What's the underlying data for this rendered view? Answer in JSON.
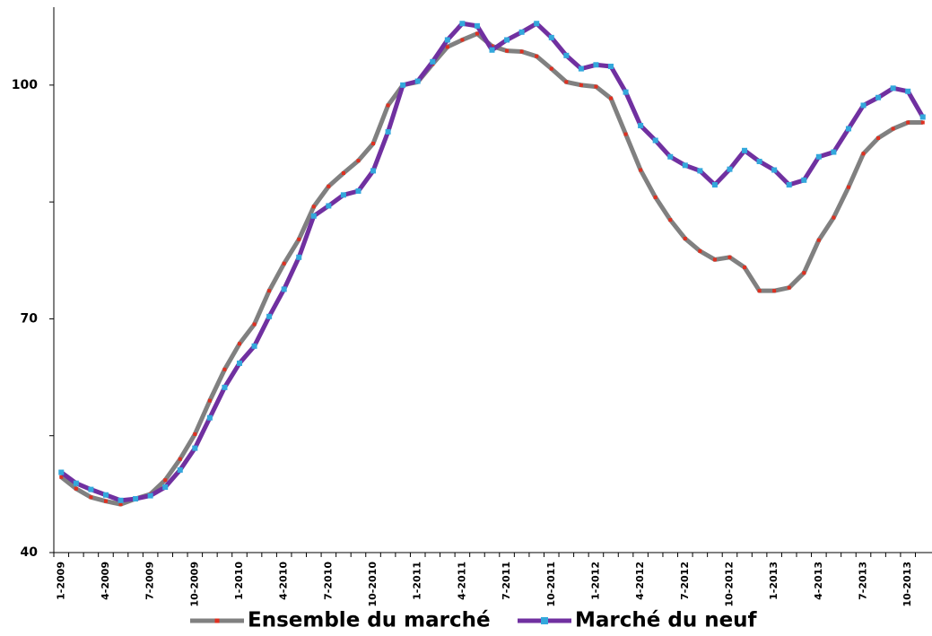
{
  "chart_data": {
    "type": "line",
    "categories": [
      "1-2009",
      null,
      null,
      "4-2009",
      null,
      null,
      "7-2009",
      null,
      null,
      "10-2009",
      null,
      null,
      "1-2010",
      null,
      null,
      "4-2010",
      null,
      null,
      "7-2010",
      null,
      null,
      "10-2010",
      null,
      null,
      "1-2011",
      null,
      null,
      "4-2011",
      null,
      null,
      "7-2011",
      null,
      null,
      "10-2011",
      null,
      null,
      "1-2012",
      null,
      null,
      "4-2012",
      null,
      null,
      "7-2012",
      null,
      null,
      "10-2012",
      null,
      null,
      "1-2013",
      null,
      null,
      "4-2013",
      null,
      null,
      "7-2013",
      null,
      null,
      "10-2013",
      null
    ],
    "series": [
      {
        "name": "Ensemble du marché",
        "color": "#808080",
        "marker_color": "#e03020",
        "values": [
          49.7,
          48.2,
          47.1,
          46.6,
          46.2,
          46.9,
          47.5,
          49.3,
          52.0,
          55.2,
          59.5,
          63.5,
          66.8,
          69.3,
          73.6,
          77.1,
          80.2,
          84.4,
          87.0,
          88.7,
          90.3,
          92.5,
          97.4,
          100.0,
          100.4,
          102.7,
          104.9,
          105.8,
          106.6,
          105.0,
          104.4,
          104.3,
          103.7,
          102.1,
          100.4,
          100.0,
          99.8,
          98.3,
          93.7,
          89.1,
          85.6,
          82.7,
          80.3,
          78.7,
          77.6,
          77.9,
          76.6,
          73.6,
          73.6,
          74.0,
          75.9,
          80.1,
          83.0,
          86.9,
          91.2,
          93.2,
          94.4,
          95.2,
          95.2
        ]
      },
      {
        "name": "Marché du neuf",
        "color": "#7030a0",
        "marker_color": "#33a8dc",
        "values": [
          50.3,
          48.9,
          48.1,
          47.4,
          46.7,
          46.9,
          47.3,
          48.4,
          50.6,
          53.4,
          57.3,
          61.2,
          64.3,
          66.5,
          70.3,
          73.8,
          77.9,
          83.2,
          84.5,
          85.9,
          86.4,
          89.0,
          94.0,
          100.0,
          100.5,
          103.0,
          105.8,
          107.9,
          107.6,
          104.5,
          105.8,
          106.8,
          107.9,
          106.1,
          103.8,
          102.1,
          102.6,
          102.4,
          99.1,
          94.8,
          92.9,
          90.8,
          89.7,
          89.0,
          87.2,
          89.2,
          91.6,
          90.2,
          89.1,
          87.2,
          87.8,
          90.8,
          91.4,
          94.4,
          97.4,
          98.4,
          99.6,
          99.2,
          95.9
        ]
      }
    ],
    "ylim": [
      40,
      110
    ],
    "yticks": [
      40,
      70,
      100
    ],
    "yminorticks": [
      55,
      85
    ]
  }
}
